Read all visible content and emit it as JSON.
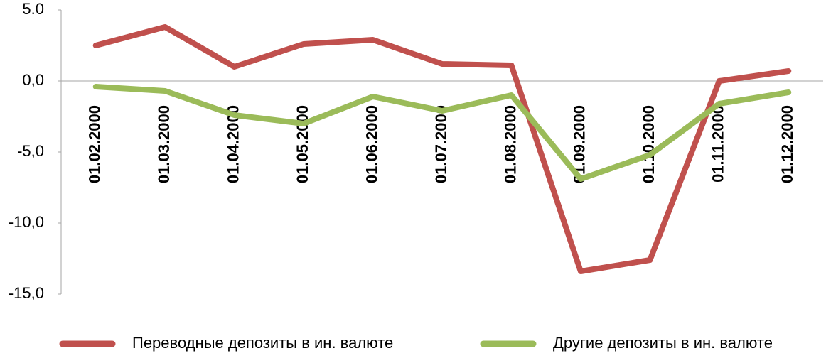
{
  "chart_data": {
    "type": "line",
    "categories": [
      "01.02.2000",
      "01.03.2000",
      "01.04.2000",
      "01.05.2000",
      "01.06.2000",
      "01.07.2000",
      "01.08.2000",
      "01.09.2000",
      "01.10.2000",
      "01.11.2000",
      "01.12.2000"
    ],
    "series": [
      {
        "name": "Переводные депозиты в ин. валюте",
        "color": "#c0504d",
        "values": [
          2.5,
          3.8,
          1.0,
          2.6,
          2.9,
          1.2,
          1.1,
          -13.4,
          -12.6,
          0.0,
          0.7
        ]
      },
      {
        "name": "Другие депозиты в ин. валюте",
        "color": "#9bbb59",
        "values": [
          -0.4,
          -0.7,
          -2.4,
          -3.0,
          -1.1,
          -2.1,
          -1.0,
          -6.9,
          -5.2,
          -1.6,
          -0.8
        ]
      }
    ],
    "ylim": [
      -15,
      5
    ],
    "yticks": [
      {
        "value": 5,
        "label": "5.0"
      },
      {
        "value": 0,
        "label": "0,0"
      },
      {
        "value": -5,
        "label": "-5,0"
      },
      {
        "value": -10,
        "label": "-10,0"
      },
      {
        "value": -15,
        "label": "-15,0"
      }
    ],
    "grid": false,
    "legend": "bottom"
  }
}
